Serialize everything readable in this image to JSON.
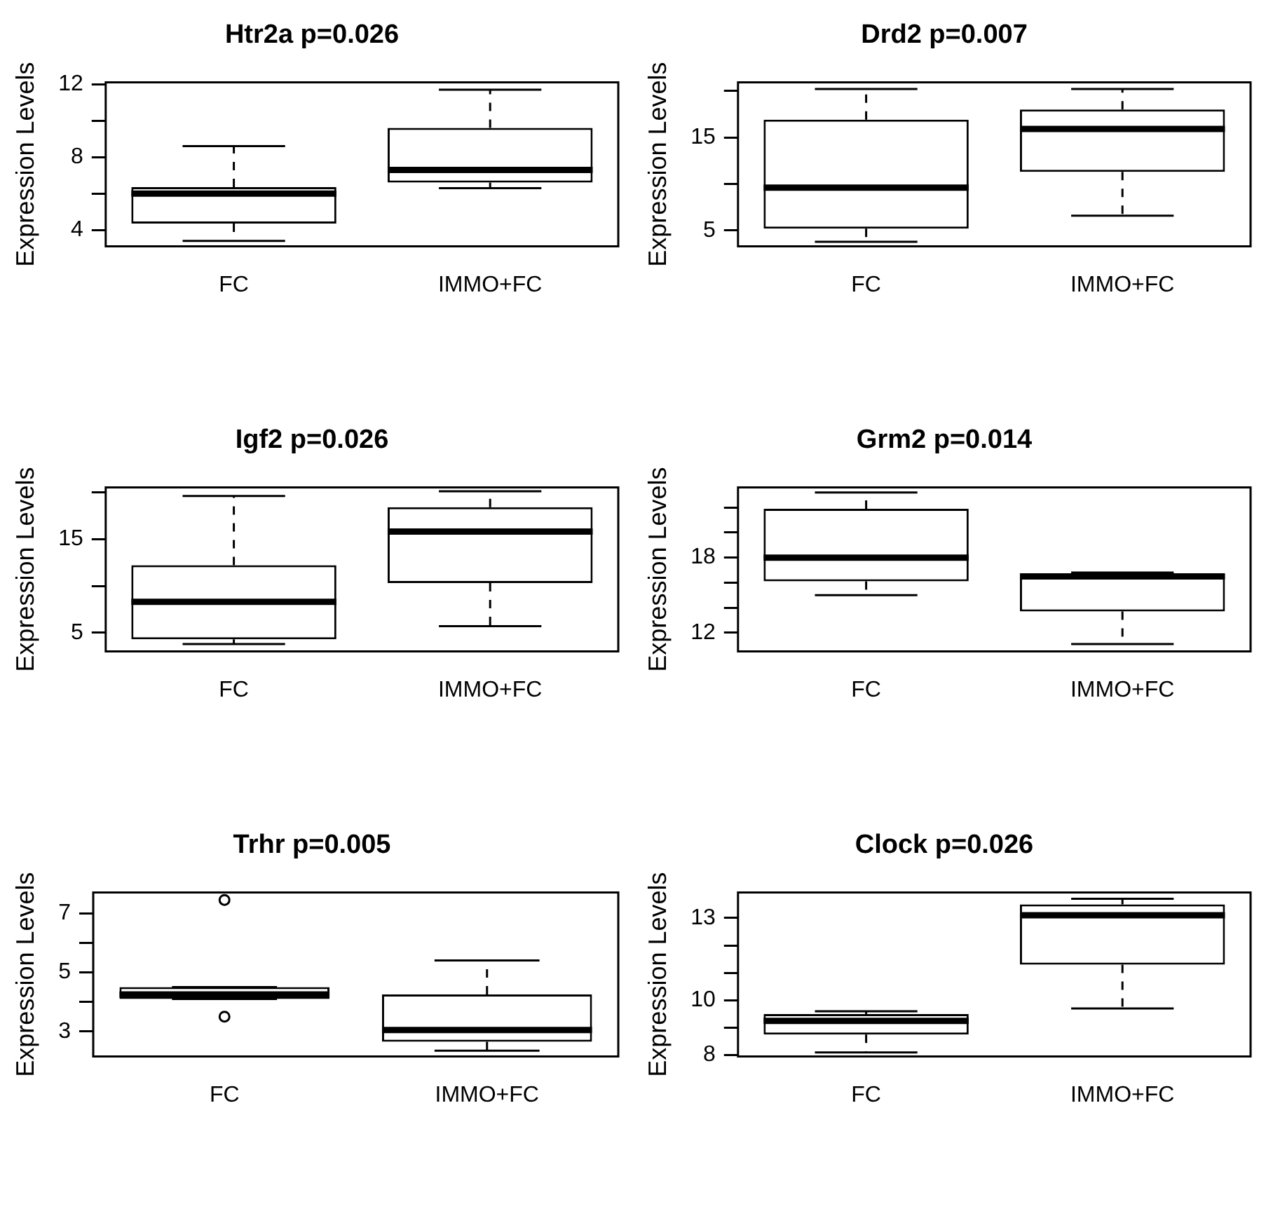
{
  "chart_data": [
    {
      "type": "box",
      "title": "Htr2a p=0.026",
      "ylabel": "Expression Levels",
      "categories": [
        "FC",
        "IMMO+FC"
      ],
      "ylim": [
        3.1,
        12.1
      ],
      "yticks": [
        4,
        {
          "value": 6,
          "label": null
        },
        8,
        {
          "value": 10,
          "label": null
        },
        12
      ],
      "boxes": [
        {
          "low": 3.4,
          "q1": 4.35,
          "median": 6.0,
          "q3": 6.35,
          "high": 8.6
        },
        {
          "low": 6.3,
          "q1": 6.6,
          "median": 7.3,
          "q3": 9.6,
          "high": 11.7
        }
      ]
    },
    {
      "type": "box",
      "title": "Drd2 p=0.007",
      "ylabel": "Expression Levels",
      "categories": [
        "FC",
        "IMMO+FC"
      ],
      "ylim": [
        3.3,
        20.9
      ],
      "yticks": [
        5,
        {
          "value": 10,
          "label": null
        },
        15,
        {
          "value": 20,
          "label": null
        }
      ],
      "boxes": [
        {
          "low": 3.8,
          "q1": 5.2,
          "median": 9.6,
          "q3": 16.9,
          "high": 20.2
        },
        {
          "low": 6.6,
          "q1": 11.3,
          "median": 15.9,
          "q3": 18.0,
          "high": 20.2
        }
      ]
    },
    {
      "type": "box",
      "title": "Igf2 p=0.026",
      "ylabel": "Expression Levels",
      "categories": [
        "FC",
        "IMMO+FC"
      ],
      "ylim": [
        3.0,
        20.5
      ],
      "yticks": [
        5,
        {
          "value": 10,
          "label": null
        },
        15,
        {
          "value": 20,
          "label": null
        }
      ],
      "boxes": [
        {
          "low": 3.8,
          "q1": 4.3,
          "median": 8.3,
          "q3": 12.2,
          "high": 19.6
        },
        {
          "low": 5.7,
          "q1": 10.3,
          "median": 15.8,
          "q3": 18.4,
          "high": 20.1
        }
      ]
    },
    {
      "type": "box",
      "title": "Grm2 p=0.014",
      "ylabel": "Expression Levels",
      "categories": [
        "FC",
        "IMMO+FC"
      ],
      "ylim": [
        10.5,
        23.6
      ],
      "yticks": [
        12,
        {
          "value": 14,
          "label": null
        },
        {
          "value": 16,
          "label": null
        },
        18,
        {
          "value": 20,
          "label": null
        },
        {
          "value": 22,
          "label": null
        }
      ],
      "boxes": [
        {
          "low": 15.0,
          "q1": 16.1,
          "median": 18.0,
          "q3": 21.9,
          "high": 23.2
        },
        {
          "low": 11.1,
          "q1": 13.7,
          "median": 16.5,
          "q3": 16.7,
          "high": 16.8
        }
      ]
    },
    {
      "type": "box",
      "title": "Trhr p=0.005",
      "ylabel": "Expression Levels",
      "categories": [
        "FC",
        "IMMO+FC"
      ],
      "ylim": [
        2.15,
        7.7
      ],
      "yticks": [
        3,
        {
          "value": 4,
          "label": null
        },
        5,
        {
          "value": 6,
          "label": null
        },
        7
      ],
      "boxes": [
        {
          "low": 4.1,
          "q1": 4.1,
          "median": 4.25,
          "q3": 4.5,
          "high": 4.5,
          "outliers": [
            7.45,
            3.5
          ]
        },
        {
          "low": 2.35,
          "q1": 2.65,
          "median": 3.05,
          "q3": 4.25,
          "high": 5.4
        }
      ]
    },
    {
      "type": "box",
      "title": "Clock p=0.026",
      "ylabel": "Expression Levels",
      "categories": [
        "FC",
        "IMMO+FC"
      ],
      "ylim": [
        7.95,
        13.93
      ],
      "yticks": [
        8,
        {
          "value": 9,
          "label": null
        },
        10,
        {
          "value": 11,
          "label": null
        },
        {
          "value": 12,
          "label": null
        },
        13
      ],
      "boxes": [
        {
          "low": 8.1,
          "q1": 8.75,
          "median": 9.25,
          "q3": 9.5,
          "high": 9.6
        },
        {
          "low": 9.7,
          "q1": 11.3,
          "median": 13.1,
          "q3": 13.5,
          "high": 13.7
        }
      ]
    }
  ]
}
